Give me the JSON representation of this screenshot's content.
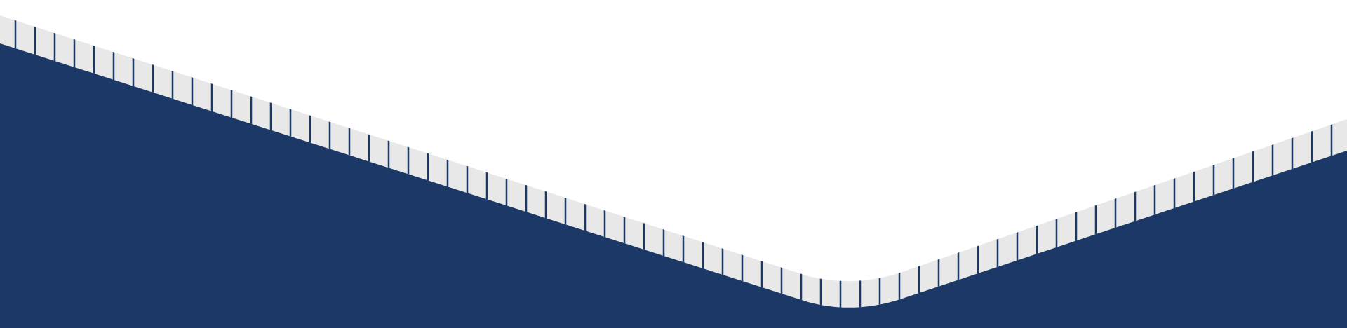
{
  "colors": {
    "background": "#ffffff",
    "navy": "#1b3866",
    "band": "#e8e8e8",
    "tick": "#1b3866"
  },
  "decoration": {
    "kind": "chevron-divider",
    "band_pattern": "vertical-stripes"
  }
}
